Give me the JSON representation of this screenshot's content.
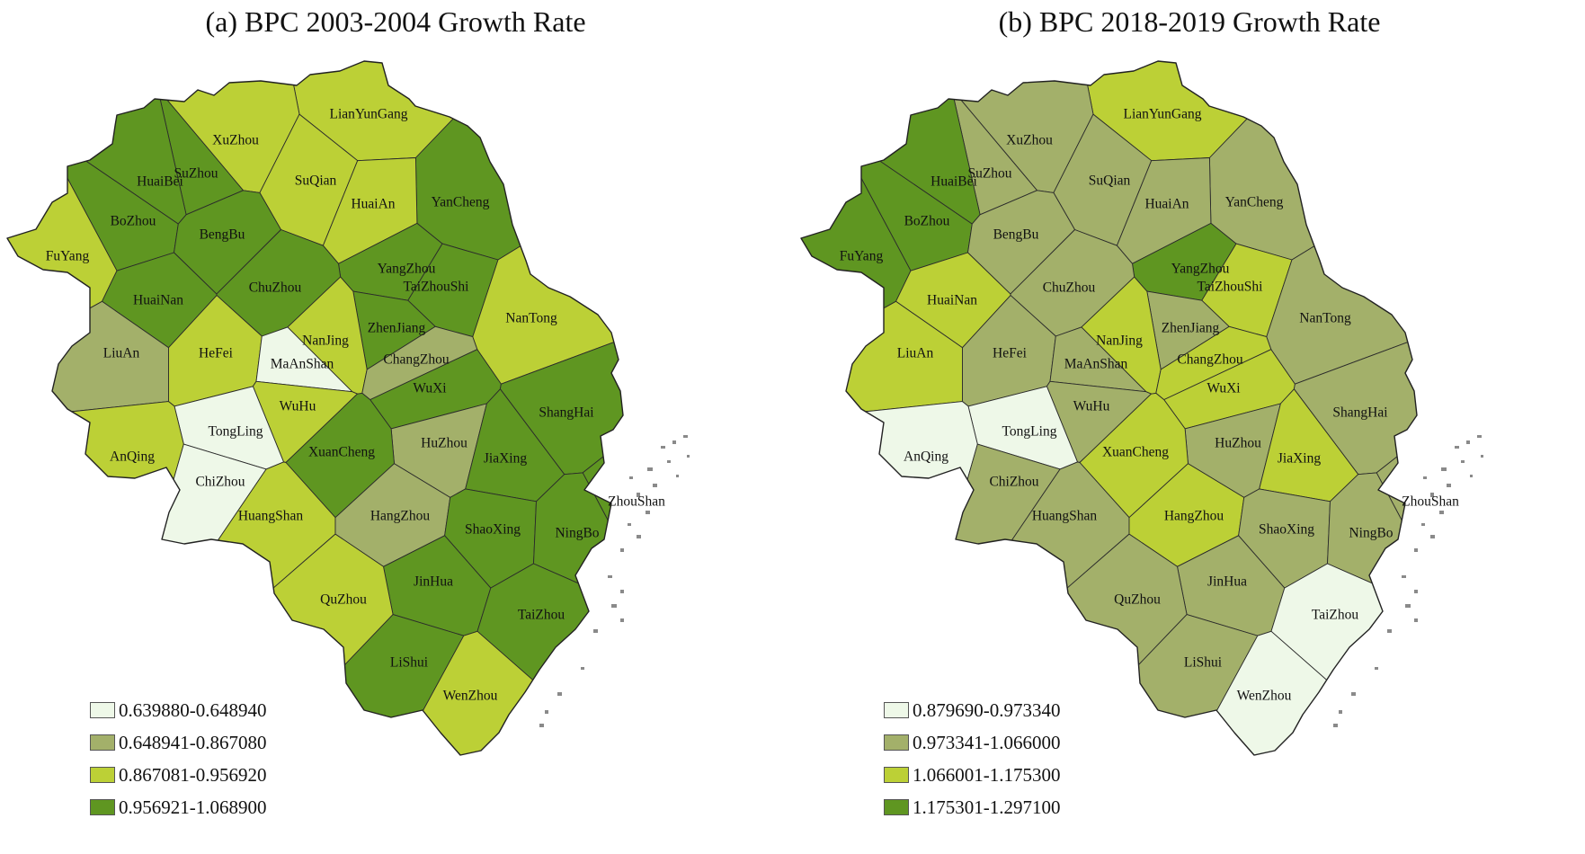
{
  "panels": [
    {
      "title": "(a) BPC 2003-2004 Growth Rate",
      "legend": [
        {
          "label": "0.639880-0.648940",
          "color": "#eef8e8"
        },
        {
          "label": "0.648941-0.867080",
          "color": "#a3b06a"
        },
        {
          "label": "0.867081-0.956920",
          "color": "#bcd036"
        },
        {
          "label": "0.956921-1.068900",
          "color": "#5f9621"
        }
      ],
      "cities": [
        {
          "name": "LianYunGang",
          "class": 2
        },
        {
          "name": "XuZhou",
          "class": 2
        },
        {
          "name": "SuZhou",
          "class": 3
        },
        {
          "name": "SuQian",
          "class": 2
        },
        {
          "name": "HuaiBei",
          "class": 3
        },
        {
          "name": "YanCheng",
          "class": 3
        },
        {
          "name": "HuaiAn",
          "class": 2
        },
        {
          "name": "BoZhou",
          "class": 3
        },
        {
          "name": "BengBu",
          "class": 3
        },
        {
          "name": "FuYang",
          "class": 2
        },
        {
          "name": "YangZhou",
          "class": 3
        },
        {
          "name": "TaiZhouShi",
          "class": 3
        },
        {
          "name": "ChuZhou",
          "class": 3
        },
        {
          "name": "HuaiNan",
          "class": 3
        },
        {
          "name": "NanTong",
          "class": 2
        },
        {
          "name": "ZhenJiang",
          "class": 3
        },
        {
          "name": "NanJing",
          "class": 2
        },
        {
          "name": "LiuAn",
          "class": 1
        },
        {
          "name": "HeFei",
          "class": 2
        },
        {
          "name": "MaAnShan",
          "class": 0
        },
        {
          "name": "ChangZhou",
          "class": 1
        },
        {
          "name": "WuXi",
          "class": 3
        },
        {
          "name": "WuHu",
          "class": 2
        },
        {
          "name": "ShangHai",
          "class": 3
        },
        {
          "name": "TongLing",
          "class": 0
        },
        {
          "name": "HuZhou",
          "class": 1
        },
        {
          "name": "AnQing",
          "class": 2
        },
        {
          "name": "XuanCheng",
          "class": 3
        },
        {
          "name": "JiaXing",
          "class": 3
        },
        {
          "name": "ChiZhou",
          "class": 0
        },
        {
          "name": "ZhouShan",
          "class": 3
        },
        {
          "name": "HuangShan",
          "class": 2
        },
        {
          "name": "HangZhou",
          "class": 1
        },
        {
          "name": "ShaoXing",
          "class": 3
        },
        {
          "name": "NingBo",
          "class": 3
        },
        {
          "name": "JinHua",
          "class": 3
        },
        {
          "name": "QuZhou",
          "class": 2
        },
        {
          "name": "TaiZhou",
          "class": 3
        },
        {
          "name": "LiShui",
          "class": 3
        },
        {
          "name": "WenZhou",
          "class": 2
        }
      ]
    },
    {
      "title": "(b) BPC 2018-2019 Growth Rate",
      "legend": [
        {
          "label": "0.879690-0.973340",
          "color": "#eef8e8"
        },
        {
          "label": "0.973341-1.066000",
          "color": "#a3b06a"
        },
        {
          "label": "1.066001-1.175300",
          "color": "#bcd036"
        },
        {
          "label": "1.175301-1.297100",
          "color": "#5f9621"
        }
      ],
      "cities": [
        {
          "name": "LianYunGang",
          "class": 2
        },
        {
          "name": "XuZhou",
          "class": 1
        },
        {
          "name": "SuZhou",
          "class": 1
        },
        {
          "name": "SuQian",
          "class": 1
        },
        {
          "name": "HuaiBei",
          "class": 3
        },
        {
          "name": "YanCheng",
          "class": 1
        },
        {
          "name": "HuaiAn",
          "class": 1
        },
        {
          "name": "BoZhou",
          "class": 3
        },
        {
          "name": "BengBu",
          "class": 1
        },
        {
          "name": "FuYang",
          "class": 3
        },
        {
          "name": "YangZhou",
          "class": 3
        },
        {
          "name": "TaiZhouShi",
          "class": 2
        },
        {
          "name": "ChuZhou",
          "class": 1
        },
        {
          "name": "HuaiNan",
          "class": 2
        },
        {
          "name": "NanTong",
          "class": 1
        },
        {
          "name": "ZhenJiang",
          "class": 1
        },
        {
          "name": "NanJing",
          "class": 2
        },
        {
          "name": "LiuAn",
          "class": 2
        },
        {
          "name": "HeFei",
          "class": 1
        },
        {
          "name": "MaAnShan",
          "class": 1
        },
        {
          "name": "ChangZhou",
          "class": 2
        },
        {
          "name": "WuXi",
          "class": 2
        },
        {
          "name": "WuHu",
          "class": 1
        },
        {
          "name": "ShangHai",
          "class": 1
        },
        {
          "name": "TongLing",
          "class": 0
        },
        {
          "name": "HuZhou",
          "class": 1
        },
        {
          "name": "AnQing",
          "class": 0
        },
        {
          "name": "XuanCheng",
          "class": 2
        },
        {
          "name": "JiaXing",
          "class": 2
        },
        {
          "name": "ChiZhou",
          "class": 1
        },
        {
          "name": "ZhouShan",
          "class": 1
        },
        {
          "name": "HuangShan",
          "class": 1
        },
        {
          "name": "HangZhou",
          "class": 2
        },
        {
          "name": "ShaoXing",
          "class": 1
        },
        {
          "name": "NingBo",
          "class": 1
        },
        {
          "name": "JinHua",
          "class": 1
        },
        {
          "name": "QuZhou",
          "class": 1
        },
        {
          "name": "TaiZhou",
          "class": 0
        },
        {
          "name": "LiShui",
          "class": 1
        },
        {
          "name": "WenZhou",
          "class": 0
        }
      ]
    }
  ]
}
